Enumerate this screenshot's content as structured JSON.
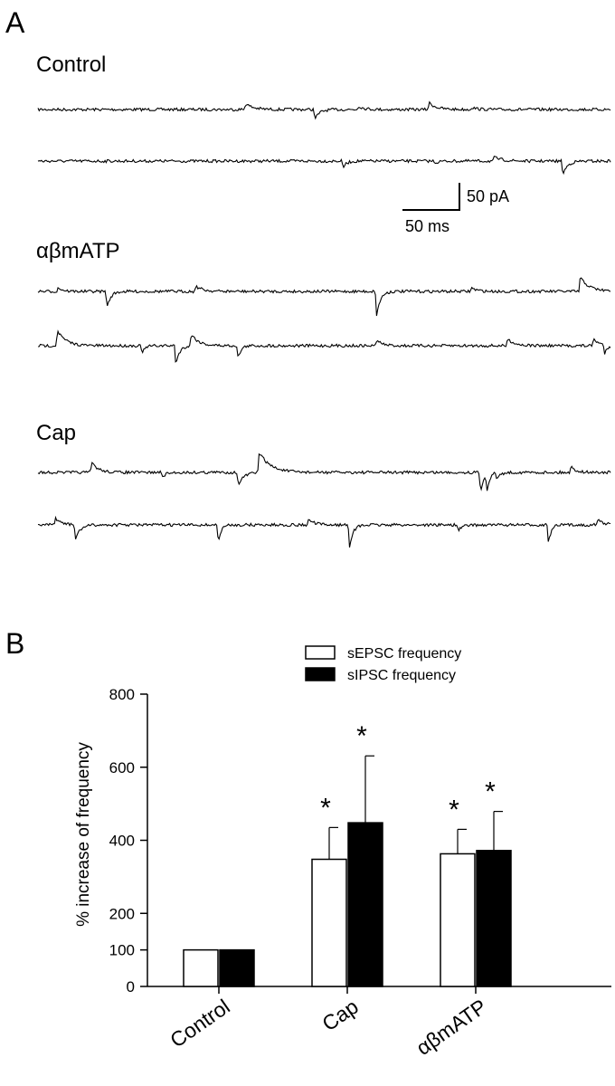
{
  "panel_a": {
    "label": "A",
    "traces": [
      {
        "condition": "Control"
      },
      {
        "condition": "αβmATP"
      },
      {
        "condition": "Cap"
      }
    ],
    "scale_bar": {
      "current_label": "50 pA",
      "time_label": "50 ms"
    }
  },
  "panel_b": {
    "label": "B"
  },
  "chart_data": {
    "type": "bar",
    "categories": [
      "Control",
      "Cap",
      "αβmATP"
    ],
    "series": [
      {
        "name": "sEPSC frequency",
        "fill": "#ffffff",
        "values": [
          100,
          348,
          363
        ],
        "errors": [
          0,
          87,
          67
        ],
        "significant": [
          false,
          true,
          true
        ]
      },
      {
        "name": "sIPSC frequency",
        "fill": "#000000",
        "values": [
          100,
          448,
          372
        ],
        "errors": [
          0,
          183,
          107
        ],
        "significant": [
          false,
          true,
          true
        ]
      }
    ],
    "ylabel": "% increase of frequency",
    "xlabel": "",
    "ylim": [
      0,
      800
    ],
    "yticks": [
      0,
      100,
      200,
      400,
      600,
      800
    ],
    "significance_marker": "*",
    "legend_position": "top-right",
    "grid": false
  }
}
